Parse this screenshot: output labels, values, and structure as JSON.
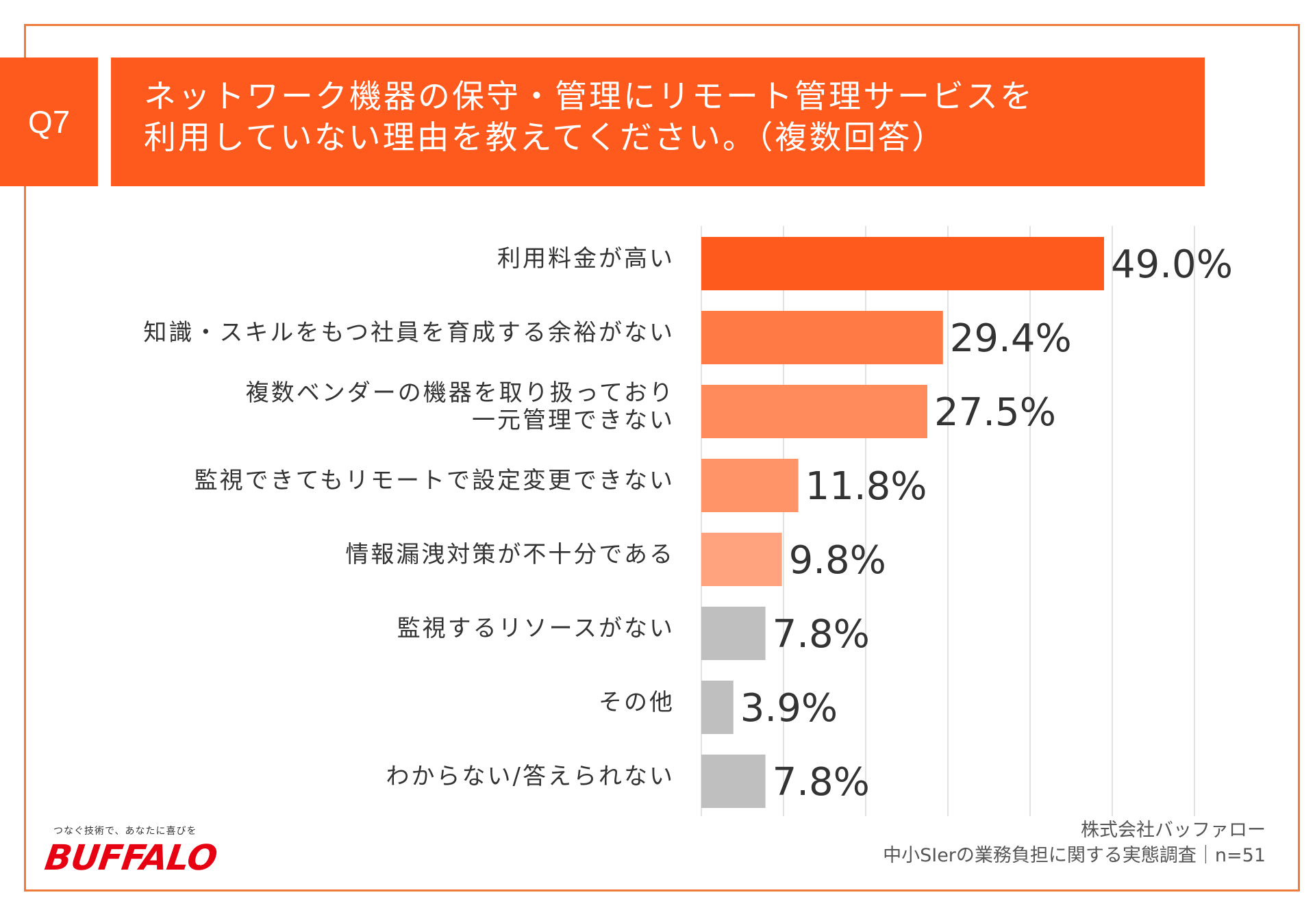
{
  "colors": {
    "accent": "#fe5a1d",
    "frame": "#ee7a3c",
    "grid": "#d9d9d9",
    "bar_gray": "#bfbfbf",
    "logo_red": "#e60012"
  },
  "header": {
    "badge": "Q7",
    "title_lines": [
      "ネットワーク機器の保守・管理にリモート管理サービスを",
      "利用していない理由を教えてください。（複数回答）"
    ]
  },
  "chart_data": {
    "type": "bar",
    "orientation": "horizontal",
    "categories": [
      [
        "利用料金が高い"
      ],
      [
        "知識・スキルをもつ社員を育成する余裕がない"
      ],
      [
        "複数ベンダーの機器を取り扱っており",
        "一元管理できない"
      ],
      [
        "監視できてもリモートで設定変更できない"
      ],
      [
        "情報漏洩対策が不十分である"
      ],
      [
        "監視するリソースがない"
      ],
      [
        "その他"
      ],
      [
        "わからない/答えられない"
      ]
    ],
    "values": [
      49.0,
      29.4,
      27.5,
      11.8,
      9.8,
      7.8,
      3.9,
      7.8
    ],
    "value_labels": [
      "49.0%",
      "29.4%",
      "27.5%",
      "11.8%",
      "9.8%",
      "7.8%",
      "3.9%",
      "7.8%"
    ],
    "bar_colors": [
      "#fe5a1d",
      "#ff7a45",
      "#ff8a5c",
      "#ff9468",
      "#ffa27d",
      "#bfbfbf",
      "#bfbfbf",
      "#bfbfbf"
    ],
    "xlim": [
      0,
      60
    ],
    "grid": true,
    "unit": "%"
  },
  "logo": {
    "tagline": "つなぐ技術で、あなたに喜びを",
    "wordmark": "BUFFALO",
    "tm": "TM"
  },
  "footer": {
    "company": "株式会社バッファロー",
    "survey": "中小SIerの業務負担に関する実態調査｜n=51"
  }
}
